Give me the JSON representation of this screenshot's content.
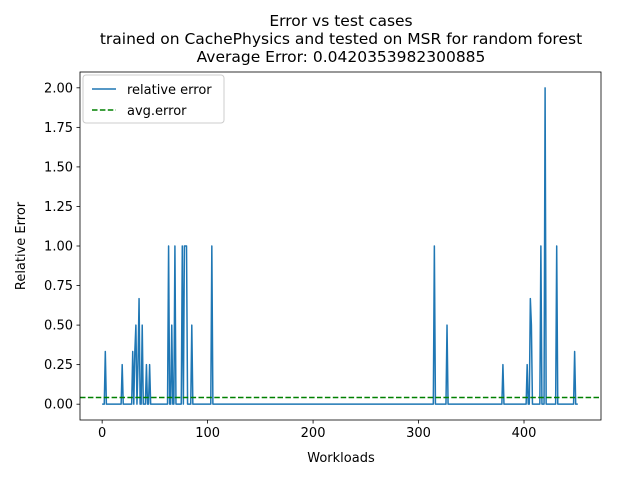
{
  "chart_data": {
    "type": "line",
    "title_lines": [
      "Error vs test cases",
      "trained on CachePhysics and tested on MSR for random forest",
      "Average Error: 0.0420353982300885"
    ],
    "xlabel": "Workloads",
    "ylabel": "Relative Error",
    "xlim": [
      -21,
      473
    ],
    "ylim": [
      -0.1,
      2.1
    ],
    "x_ticks": [
      0,
      100,
      200,
      300,
      400
    ],
    "y_ticks": [
      0.0,
      0.25,
      0.5,
      0.75,
      1.0,
      1.25,
      1.5,
      1.75,
      2.0
    ],
    "x_tick_labels": [
      "0",
      "100",
      "200",
      "300",
      "400"
    ],
    "y_tick_labels": [
      "0.00",
      "0.25",
      "0.50",
      "0.75",
      "1.00",
      "1.25",
      "1.50",
      "1.75",
      "2.00"
    ],
    "grid": false,
    "legend_position": "upper left",
    "n_points": 452,
    "baseline_value": 0,
    "series": [
      {
        "name": "relative error",
        "style": "solid",
        "color": "#1f77b4",
        "spikes": [
          {
            "x": 3,
            "y": 0.333
          },
          {
            "x": 19,
            "y": 0.25
          },
          {
            "x": 29,
            "y": 0.333
          },
          {
            "x": 31,
            "y": 0.333
          },
          {
            "x": 32,
            "y": 0.5
          },
          {
            "x": 34,
            "y": 0.25
          },
          {
            "x": 35,
            "y": 0.667
          },
          {
            "x": 38,
            "y": 0.5
          },
          {
            "x": 42,
            "y": 0.25
          },
          {
            "x": 45,
            "y": 0.25
          },
          {
            "x": 63,
            "y": 1.0
          },
          {
            "x": 66,
            "y": 0.5
          },
          {
            "x": 69,
            "y": 1.0
          },
          {
            "x": 76,
            "y": 1.0
          },
          {
            "x": 78,
            "y": 1.0
          },
          {
            "x": 79,
            "y": 1.0
          },
          {
            "x": 80,
            "y": 1.0
          },
          {
            "x": 85,
            "y": 0.5
          },
          {
            "x": 104,
            "y": 1.0
          },
          {
            "x": 315,
            "y": 1.0
          },
          {
            "x": 327,
            "y": 0.5
          },
          {
            "x": 380,
            "y": 0.25
          },
          {
            "x": 403,
            "y": 0.25
          },
          {
            "x": 406,
            "y": 0.667
          },
          {
            "x": 407,
            "y": 0.5
          },
          {
            "x": 416,
            "y": 1.0
          },
          {
            "x": 420,
            "y": 2.0
          },
          {
            "x": 431,
            "y": 1.0
          },
          {
            "x": 448,
            "y": 0.333
          }
        ]
      },
      {
        "name": "avg.error",
        "style": "dashed",
        "color": "#008000",
        "value": 0.0420353982300885
      }
    ]
  }
}
